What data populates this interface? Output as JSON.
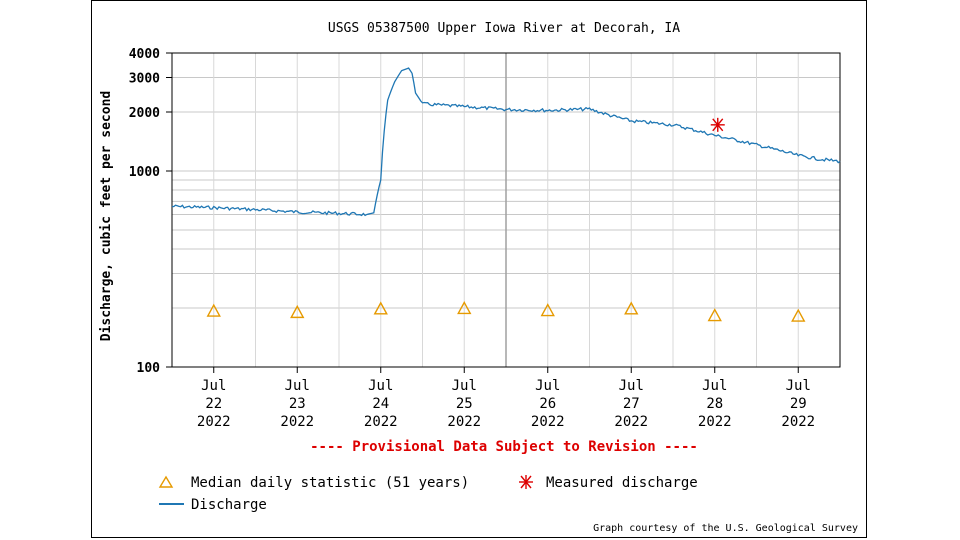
{
  "chart_data": {
    "type": "line",
    "title": "USGS 05387500 Upper Iowa River at Decorah, IA",
    "ylabel": "Discharge, cubic feet per second",
    "yscale": "log",
    "ylim": [
      100,
      4000
    ],
    "y_ticks": [
      100,
      1000,
      2000,
      3000,
      4000
    ],
    "x_range": [
      "2022-07-21 12:00",
      "2022-07-29 12:00"
    ],
    "x_ticks": [
      {
        "date": "2022-07-22",
        "month": "Jul",
        "day": "22",
        "year": "2022"
      },
      {
        "date": "2022-07-23",
        "month": "Jul",
        "day": "23",
        "year": "2022"
      },
      {
        "date": "2022-07-24",
        "month": "Jul",
        "day": "24",
        "year": "2022"
      },
      {
        "date": "2022-07-25",
        "month": "Jul",
        "day": "25",
        "year": "2022"
      },
      {
        "date": "2022-07-26",
        "month": "Jul",
        "day": "26",
        "year": "2022"
      },
      {
        "date": "2022-07-27",
        "month": "Jul",
        "day": "27",
        "year": "2022"
      },
      {
        "date": "2022-07-28",
        "month": "Jul",
        "day": "28",
        "year": "2022"
      },
      {
        "date": "2022-07-29",
        "month": "Jul",
        "day": "29",
        "year": "2022"
      }
    ],
    "series": [
      {
        "name": "Discharge",
        "color": "#1f77b4",
        "points": [
          [
            "2022-07-21 12:00",
            660
          ],
          [
            "2022-07-22 00:00",
            650
          ],
          [
            "2022-07-22 12:00",
            635
          ],
          [
            "2022-07-23 00:00",
            618
          ],
          [
            "2022-07-23 12:00",
            608
          ],
          [
            "2022-07-23 20:00",
            600
          ],
          [
            "2022-07-23 22:00",
            612
          ],
          [
            "2022-07-24 00:00",
            900
          ],
          [
            "2022-07-24 02:00",
            2300
          ],
          [
            "2022-07-24 04:00",
            2850
          ],
          [
            "2022-07-24 06:00",
            3250
          ],
          [
            "2022-07-24 08:00",
            3350
          ],
          [
            "2022-07-24 09:00",
            3150
          ],
          [
            "2022-07-24 10:00",
            2500
          ],
          [
            "2022-07-24 12:00",
            2200
          ],
          [
            "2022-07-25 00:00",
            2130
          ],
          [
            "2022-07-25 12:00",
            2060
          ],
          [
            "2022-07-26 00:00",
            2040
          ],
          [
            "2022-07-26 12:00",
            2070
          ],
          [
            "2022-07-26 18:00",
            1920
          ],
          [
            "2022-07-27 00:00",
            1800
          ],
          [
            "2022-07-27 12:00",
            1720
          ],
          [
            "2022-07-28 00:00",
            1520
          ],
          [
            "2022-07-28 12:00",
            1360
          ],
          [
            "2022-07-29 00:00",
            1200
          ],
          [
            "2022-07-29 06:00",
            1150
          ],
          [
            "2022-07-29 12:00",
            1120
          ]
        ]
      },
      {
        "name": "Median daily statistic (51 years)",
        "color": "#e69a00",
        "marker": "triangle",
        "points": [
          [
            "2022-07-22 00:00",
            193
          ],
          [
            "2022-07-23 00:00",
            190
          ],
          [
            "2022-07-24 00:00",
            198
          ],
          [
            "2022-07-25 00:00",
            199
          ],
          [
            "2022-07-26 00:00",
            194
          ],
          [
            "2022-07-27 00:00",
            198
          ],
          [
            "2022-07-28 00:00",
            183
          ],
          [
            "2022-07-29 00:00",
            182
          ]
        ]
      },
      {
        "name": "Measured discharge",
        "color": "#dd0000",
        "marker": "asterisk",
        "points": [
          [
            "2022-07-28 00:00",
            1720
          ]
        ]
      }
    ],
    "grid": true,
    "notice": "---- Provisional Data Subject to Revision ----",
    "credit": "Graph courtesy of the U.S. Geological Survey",
    "legend_position": "bottom-left"
  }
}
